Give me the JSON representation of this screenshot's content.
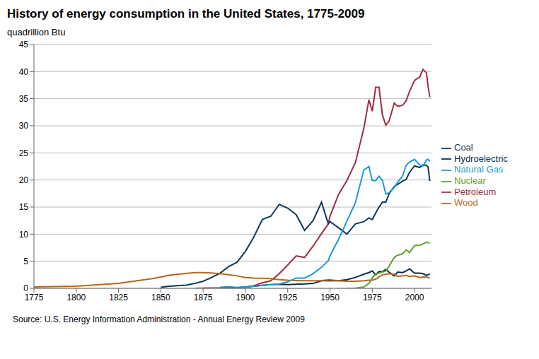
{
  "chart_data": {
    "type": "line",
    "title": "History of energy consumption in the United States, 1775-2009",
    "subtitle": "quadrillion Btu",
    "source": "Source: U.S. Energy Information Administration - Annual Energy Review 2009",
    "x": [
      1775,
      1800,
      1825,
      1845,
      1850,
      1855,
      1860,
      1865,
      1870,
      1875,
      1880,
      1885,
      1890,
      1895,
      1900,
      1905,
      1910,
      1915,
      1920,
      1925,
      1930,
      1935,
      1940,
      1945,
      1949,
      1950,
      1955,
      1960,
      1965,
      1970,
      1973,
      1975,
      1977,
      1979,
      1981,
      1983,
      1985,
      1988,
      1990,
      1993,
      1995,
      1997,
      2000,
      2003,
      2005,
      2007,
      2008,
      2009
    ],
    "xlim": [
      1775,
      2010
    ],
    "xticks": [
      1775,
      1800,
      1825,
      1850,
      1875,
      1900,
      1925,
      1950,
      1975,
      2000
    ],
    "ylim": [
      0,
      45
    ],
    "yticks": [
      0,
      5,
      10,
      15,
      20,
      25,
      30,
      35,
      40,
      45
    ],
    "grid": true,
    "legend": "right",
    "series": [
      {
        "name": "Petroleum",
        "color": "#9b2f3f",
        "values": [
          null,
          null,
          null,
          null,
          null,
          null,
          null,
          null,
          0.01,
          0.02,
          0.05,
          0.05,
          0.1,
          0.1,
          0.2,
          0.5,
          1.0,
          1.4,
          2.7,
          4.3,
          6.0,
          5.7,
          7.8,
          10.1,
          11.9,
          13.3,
          17.3,
          19.9,
          23.2,
          29.5,
          34.8,
          32.7,
          37.1,
          37.1,
          32.0,
          30.1,
          30.9,
          34.2,
          33.6,
          33.8,
          34.6,
          36.3,
          38.4,
          39.0,
          40.4,
          39.8,
          37.3,
          35.3
        ]
      },
      {
        "name": "Hydroelectric",
        "color": "#0b2d4d",
        "values": [
          null,
          null,
          null,
          null,
          null,
          null,
          null,
          null,
          null,
          null,
          null,
          null,
          0.02,
          0.1,
          0.25,
          0.4,
          0.55,
          0.7,
          0.75,
          0.7,
          0.75,
          0.8,
          0.9,
          1.4,
          1.4,
          1.4,
          1.4,
          1.6,
          2.0,
          2.6,
          2.9,
          3.2,
          2.5,
          3.1,
          3.1,
          3.5,
          2.97,
          2.3,
          3.0,
          2.9,
          3.2,
          3.6,
          2.8,
          2.8,
          2.7,
          2.4,
          2.5,
          2.7
        ]
      },
      {
        "name": "Coal",
        "color": "#0d3a5c",
        "values": [
          null,
          null,
          null,
          null,
          0.2,
          0.4,
          0.5,
          0.6,
          0.9,
          1.3,
          2.0,
          2.8,
          4.0,
          4.8,
          6.8,
          9.5,
          12.7,
          13.3,
          15.5,
          14.8,
          13.6,
          10.7,
          12.5,
          15.9,
          11.9,
          12.3,
          11.2,
          10.0,
          11.9,
          12.3,
          13.0,
          12.7,
          13.9,
          15.0,
          15.9,
          15.9,
          17.5,
          18.8,
          19.2,
          19.8,
          20.1,
          21.4,
          22.6,
          22.3,
          22.8,
          22.7,
          22.4,
          19.8
        ]
      },
      {
        "name": "Wood",
        "color": "#b8651e",
        "values": [
          0.25,
          0.4,
          0.9,
          1.8,
          2.1,
          2.4,
          2.6,
          2.75,
          2.9,
          2.9,
          2.85,
          2.7,
          2.5,
          2.3,
          2.0,
          1.9,
          1.85,
          1.8,
          1.6,
          1.5,
          1.45,
          1.4,
          1.4,
          1.45,
          1.55,
          1.55,
          1.4,
          1.3,
          1.3,
          1.4,
          1.5,
          1.5,
          1.7,
          2.1,
          2.5,
          2.6,
          2.7,
          2.6,
          2.2,
          2.3,
          2.4,
          2.2,
          2.3,
          2.0,
          2.1,
          2.1,
          2.0,
          1.9
        ]
      },
      {
        "name": "Natural Gas",
        "color": "#1b9ad6",
        "values": [
          null,
          null,
          null,
          null,
          null,
          null,
          null,
          null,
          null,
          null,
          null,
          0.2,
          0.3,
          0.15,
          0.25,
          0.4,
          0.55,
          0.7,
          0.8,
          1.2,
          1.9,
          1.9,
          2.7,
          3.9,
          5.1,
          6.0,
          9.0,
          12.4,
          15.8,
          21.8,
          22.5,
          19.9,
          19.9,
          20.7,
          19.9,
          17.4,
          17.7,
          18.6,
          19.6,
          20.8,
          22.7,
          23.3,
          23.8,
          22.8,
          22.6,
          23.7,
          23.8,
          23.4
        ]
      },
      {
        "name": "Nuclear",
        "color": "#5c9e31",
        "values": [
          null,
          null,
          null,
          null,
          null,
          null,
          null,
          null,
          null,
          null,
          null,
          null,
          null,
          null,
          null,
          null,
          null,
          null,
          null,
          null,
          null,
          null,
          null,
          null,
          null,
          null,
          null,
          0.01,
          0.04,
          0.24,
          0.9,
          1.9,
          2.7,
          2.8,
          3.0,
          3.2,
          4.1,
          5.7,
          6.1,
          6.4,
          7.1,
          6.6,
          7.9,
          7.96,
          8.2,
          8.5,
          8.4,
          8.4
        ]
      }
    ]
  }
}
